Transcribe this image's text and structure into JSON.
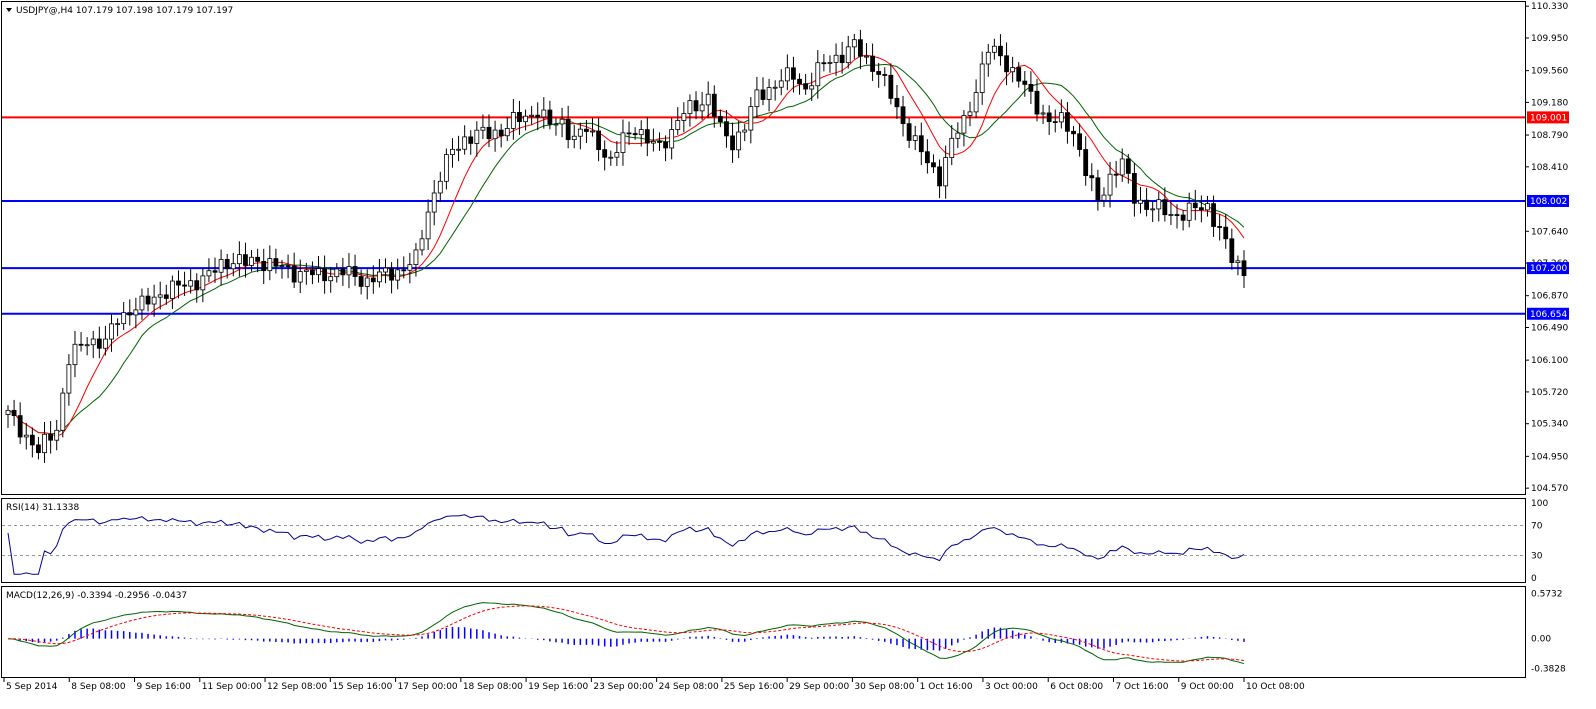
{
  "chart_data": {
    "type": "candlestick",
    "symbol_header": "USDJPY@,H4  107.179 107.198 107.179 107.197",
    "price_axis": {
      "ticks": [
        "110.330",
        "109.950",
        "109.560",
        "109.180",
        "108.790",
        "108.410",
        "107.640",
        "107.260",
        "106.870",
        "106.490",
        "106.100",
        "105.720",
        "105.340",
        "104.950",
        "104.570"
      ],
      "ylim": [
        104.5,
        110.38
      ]
    },
    "time_axis": {
      "labels": [
        "5 Sep 2014",
        "8 Sep 08:00",
        "9 Sep 16:00",
        "11 Sep 00:00",
        "12 Sep 08:00",
        "15 Sep 16:00",
        "17 Sep 00:00",
        "18 Sep 08:00",
        "19 Sep 16:00",
        "23 Sep 00:00",
        "24 Sep 08:00",
        "25 Sep 16:00",
        "29 Sep 00:00",
        "30 Sep 08:00",
        "1 Oct 16:00",
        "3 Oct 00:00",
        "6 Oct 08:00",
        "7 Oct 16:00",
        "9 Oct 00:00",
        "10 Oct 08:00"
      ]
    },
    "horizontal_levels": [
      {
        "value": 109.001,
        "label": "109.001",
        "color": "#ff0000"
      },
      {
        "value": 108.002,
        "label": "108.002",
        "color": "#0000ff"
      },
      {
        "value": 107.2,
        "label": "107.200",
        "color": "#0000ff"
      },
      {
        "value": 106.654,
        "label": "106.654",
        "color": "#0000ff"
      }
    ],
    "price_path_anchors": [
      [
        0,
        105.45
      ],
      [
        3,
        105.2
      ],
      [
        5,
        105.0
      ],
      [
        8,
        105.3
      ],
      [
        10,
        106.1
      ],
      [
        13,
        106.35
      ],
      [
        16,
        106.3
      ],
      [
        18,
        106.6
      ],
      [
        20,
        106.7
      ],
      [
        22,
        106.75
      ],
      [
        24,
        106.85
      ],
      [
        25,
        106.9
      ],
      [
        27,
        106.95
      ],
      [
        29,
        107.0
      ],
      [
        31,
        107.05
      ],
      [
        33,
        107.1
      ],
      [
        35,
        107.25
      ],
      [
        37,
        107.3
      ],
      [
        39,
        107.25
      ],
      [
        41,
        107.3
      ],
      [
        43,
        107.25
      ],
      [
        45,
        107.2
      ],
      [
        47,
        107.15
      ],
      [
        49,
        107.15
      ],
      [
        51,
        107.1
      ],
      [
        53,
        107.15
      ],
      [
        55,
        107.15
      ],
      [
        57,
        107.1
      ],
      [
        59,
        107.05
      ],
      [
        61,
        107.1
      ],
      [
        63,
        107.15
      ],
      [
        65,
        107.2
      ],
      [
        67,
        107.3
      ],
      [
        69,
        107.9
      ],
      [
        71,
        108.3
      ],
      [
        73,
        108.6
      ],
      [
        75,
        108.75
      ],
      [
        77,
        108.8
      ],
      [
        79,
        108.8
      ],
      [
        81,
        108.85
      ],
      [
        83,
        108.95
      ],
      [
        85,
        109.0
      ],
      [
        87,
        109.1
      ],
      [
        89,
        108.9
      ],
      [
        91,
        108.95
      ],
      [
        93,
        108.75
      ],
      [
        95,
        108.85
      ],
      [
        97,
        108.7
      ],
      [
        99,
        108.45
      ],
      [
        101,
        108.75
      ],
      [
        103,
        108.9
      ],
      [
        105,
        108.7
      ],
      [
        107,
        108.65
      ],
      [
        109,
        108.85
      ],
      [
        111,
        109.05
      ],
      [
        113,
        109.15
      ],
      [
        115,
        109.25
      ],
      [
        117,
        108.85
      ],
      [
        119,
        108.7
      ],
      [
        121,
        108.9
      ],
      [
        123,
        109.25
      ],
      [
        125,
        109.35
      ],
      [
        127,
        109.45
      ],
      [
        129,
        109.5
      ],
      [
        131,
        109.35
      ],
      [
        133,
        109.55
      ],
      [
        135,
        109.7
      ],
      [
        137,
        109.75
      ],
      [
        139,
        109.85
      ],
      [
        141,
        109.7
      ],
      [
        143,
        109.55
      ],
      [
        145,
        109.25
      ],
      [
        147,
        108.95
      ],
      [
        149,
        108.7
      ],
      [
        151,
        108.45
      ],
      [
        153,
        108.3
      ],
      [
        155,
        108.7
      ],
      [
        157,
        108.95
      ],
      [
        159,
        109.35
      ],
      [
        161,
        109.8
      ],
      [
        163,
        109.75
      ],
      [
        165,
        109.55
      ],
      [
        167,
        109.35
      ],
      [
        169,
        109.15
      ],
      [
        171,
        108.95
      ],
      [
        173,
        108.95
      ],
      [
        175,
        108.85
      ],
      [
        177,
        108.35
      ],
      [
        179,
        108.0
      ],
      [
        181,
        108.3
      ],
      [
        183,
        108.45
      ],
      [
        185,
        108.05
      ],
      [
        187,
        107.95
      ],
      [
        189,
        107.9
      ],
      [
        191,
        107.85
      ],
      [
        193,
        107.85
      ],
      [
        195,
        107.9
      ],
      [
        197,
        107.95
      ],
      [
        199,
        107.65
      ],
      [
        201,
        107.3
      ],
      [
        203,
        107.19
      ]
    ],
    "rsi": {
      "label": "RSI(14) 31.1338",
      "period": 14,
      "value": 31.1338,
      "levels": [
        70,
        30
      ],
      "ticks": [
        "100",
        "70",
        "30",
        "0"
      ],
      "range": [
        0,
        100
      ],
      "color": "#00008b"
    },
    "macd": {
      "label": "MACD(12,26,9) -0.3394 -0.2956 -0.0437",
      "fast": 12,
      "slow": 26,
      "signal": 9,
      "values": [
        -0.3394,
        -0.2956,
        -0.0437
      ],
      "ticks": [
        "0.5732",
        "0.00",
        "-0.3828"
      ],
      "range": [
        -0.45,
        0.62
      ],
      "macd_color": "#006400",
      "signal_color": "#ff0000",
      "hist_color": "#0000ff"
    },
    "colors": {
      "bull_body": "#ffffff",
      "bear_body": "#000000",
      "ma_fast": "#ff0000",
      "ma_slow": "#006400",
      "ma_highlight": "#ffff00"
    }
  }
}
